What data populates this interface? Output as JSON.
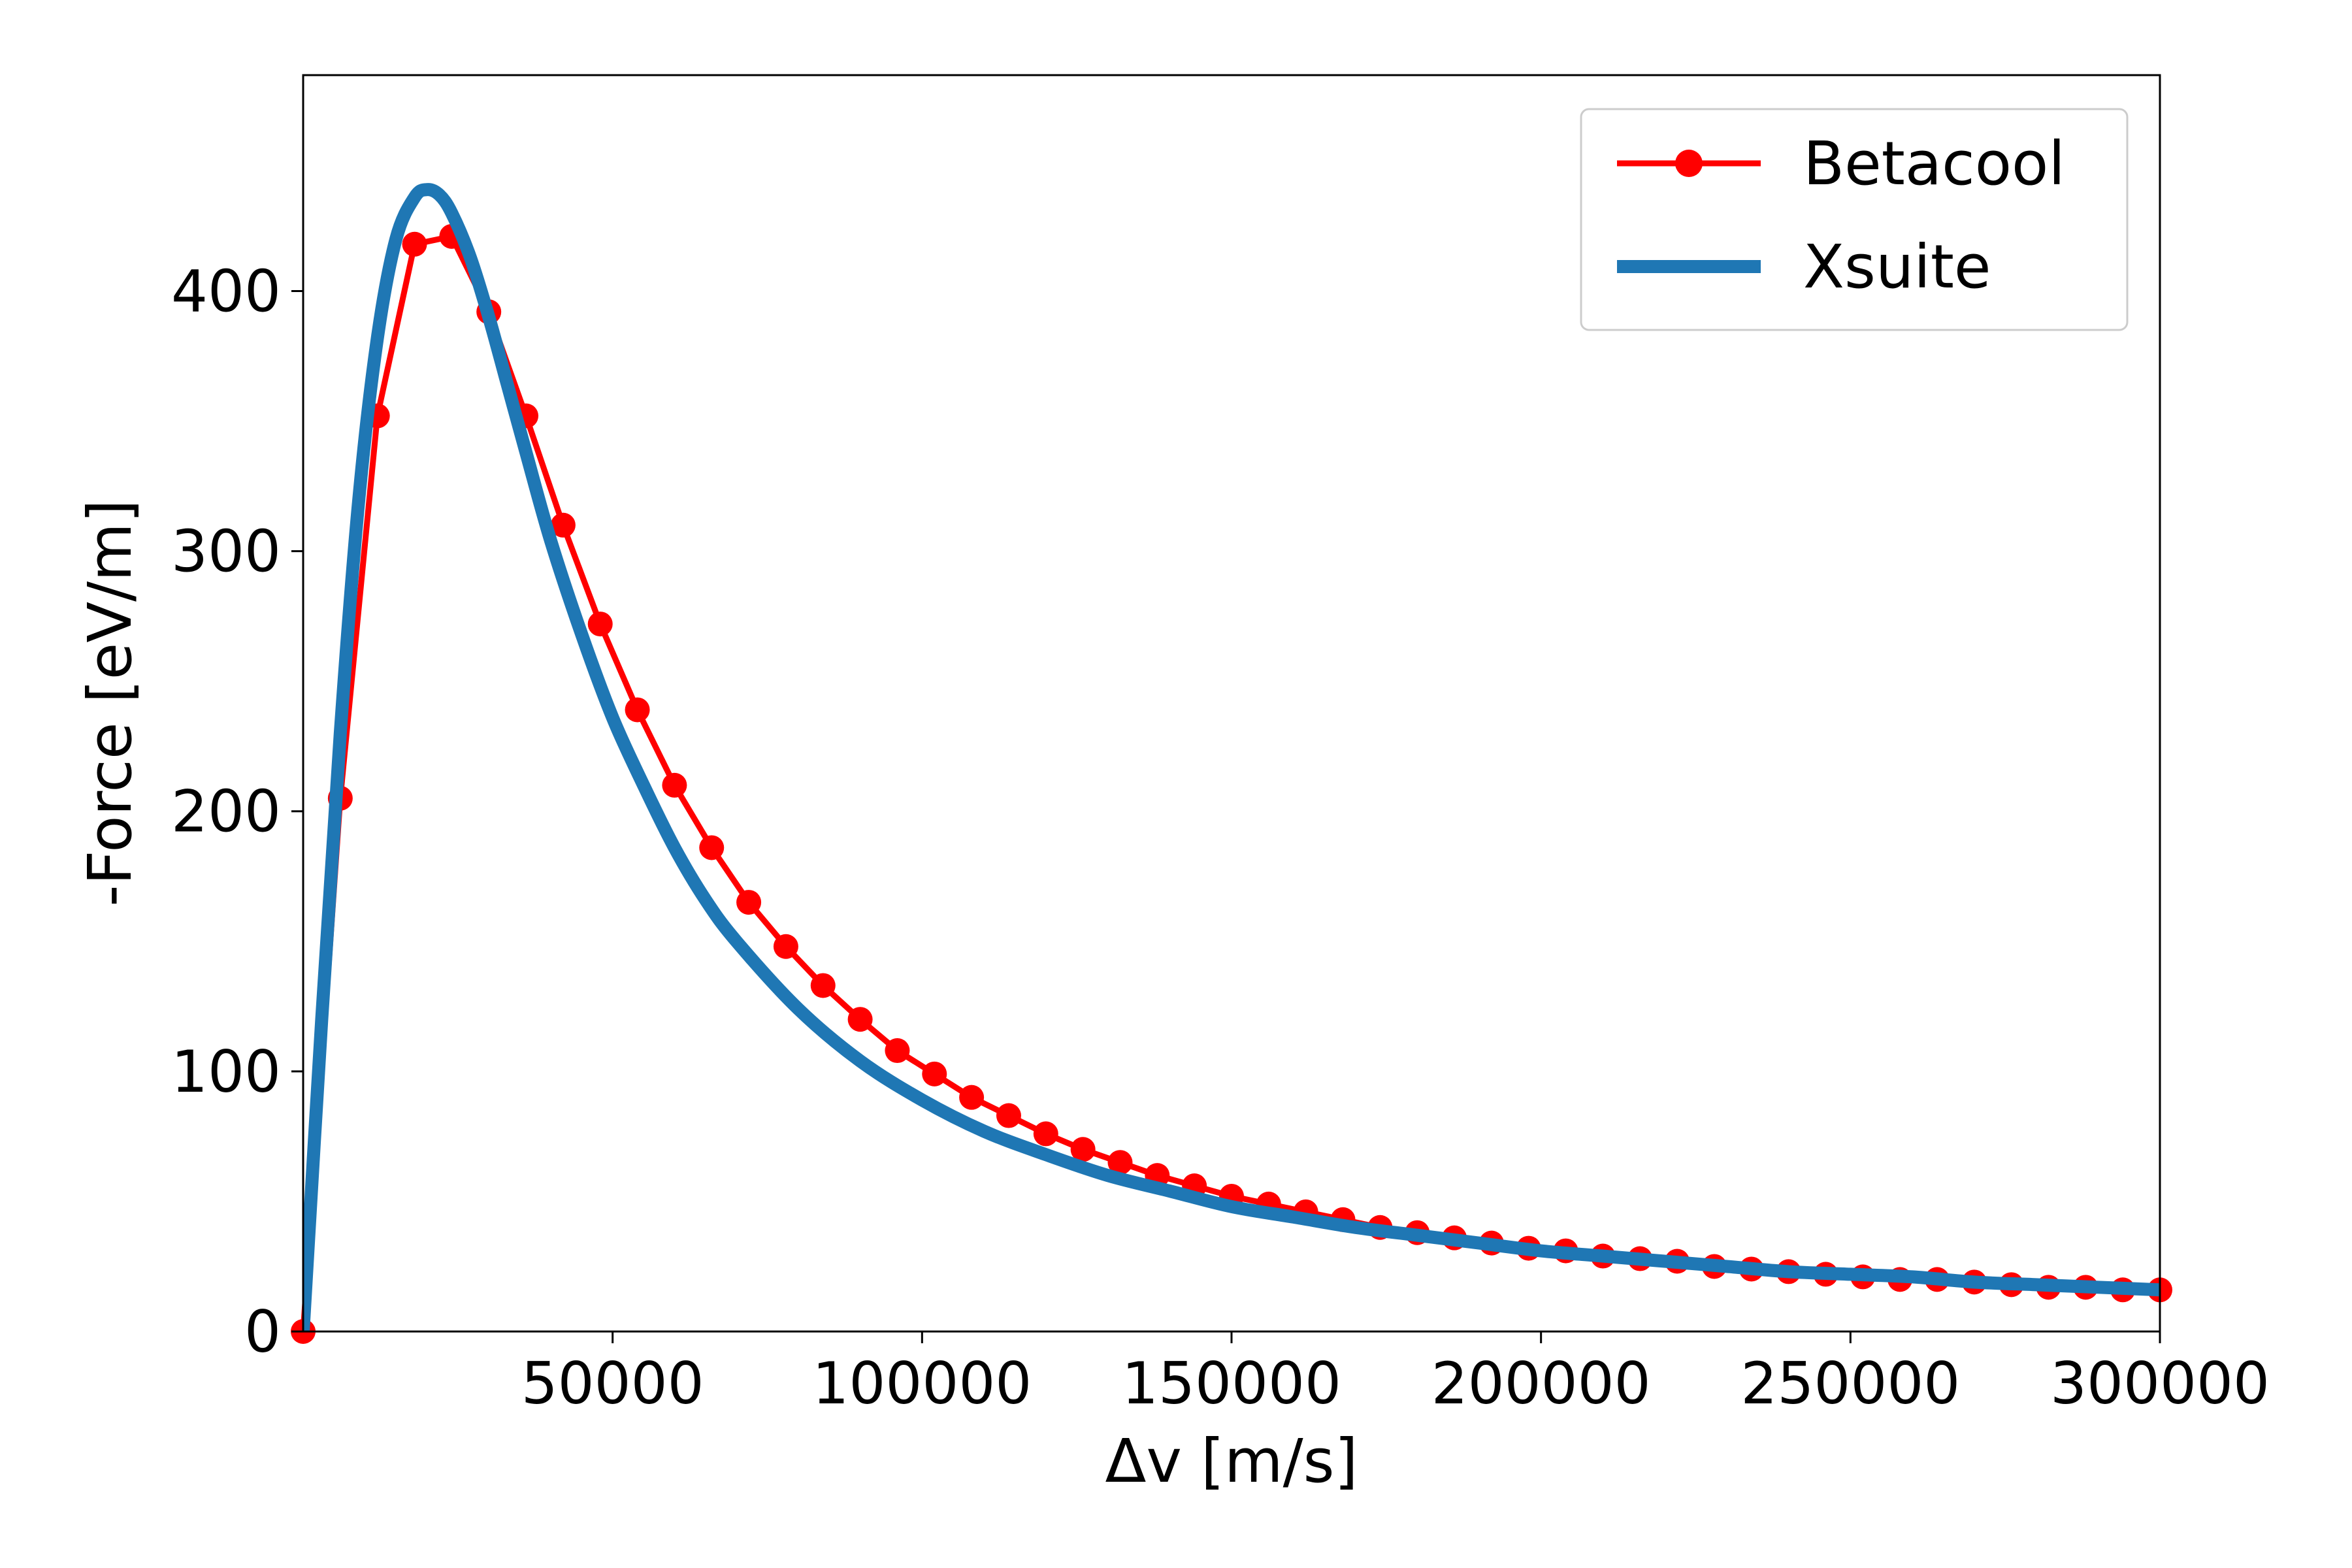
{
  "chart_data": {
    "type": "line",
    "title": "",
    "xlabel": "Δv [m/s]",
    "ylabel": "-Force [eV/m]",
    "xlim": [
      0,
      300000
    ],
    "ylim": [
      0,
      483
    ],
    "xticks": [
      50000,
      100000,
      150000,
      200000,
      250000,
      300000
    ],
    "xtick_labels": [
      "50000",
      "100000",
      "150000",
      "200000",
      "250000",
      "300000"
    ],
    "yticks": [
      0,
      100,
      200,
      300,
      400
    ],
    "ytick_labels": [
      "0",
      "100",
      "200",
      "300",
      "400"
    ],
    "grid": false,
    "legend_position": "top-right",
    "series": [
      {
        "name": "Betacool",
        "color": "#ff0000",
        "marker": "circle",
        "x": [
          0,
          6000,
          12000,
          18000,
          24000,
          30000,
          36000,
          42000,
          48000,
          54000,
          60000,
          66000,
          72000,
          78000,
          84000,
          90000,
          96000,
          102000,
          108000,
          114000,
          120000,
          126000,
          132000,
          138000,
          144000,
          150000,
          156000,
          162000,
          168000,
          174000,
          180000,
          186000,
          192000,
          198000,
          204000,
          210000,
          216000,
          222000,
          228000,
          234000,
          240000,
          246000,
          252000,
          258000,
          264000,
          270000,
          276000,
          282000,
          288000,
          294000,
          300000
        ],
        "y": [
          0,
          205,
          352,
          418,
          421,
          392,
          352,
          310,
          272,
          239,
          210,
          186,
          165,
          148,
          133,
          120,
          108,
          99,
          90,
          83,
          76,
          70,
          65,
          60,
          56,
          52,
          49,
          46,
          43,
          40,
          38,
          36,
          34,
          32,
          31,
          29,
          28,
          27,
          25,
          24,
          23,
          22,
          21,
          20,
          20,
          19,
          18,
          17,
          17,
          16,
          16
        ]
      },
      {
        "name": "Xsuite",
        "color": "#1f77b4",
        "marker": "none",
        "x": [
          0,
          3000,
          6000,
          9000,
          12000,
          15000,
          18000,
          20000,
          22000,
          24000,
          27000,
          30000,
          33000,
          36000,
          40000,
          45000,
          50000,
          55000,
          60000,
          65000,
          70000,
          80000,
          90000,
          100000,
          110000,
          120000,
          130000,
          140000,
          150000,
          160000,
          170000,
          180000,
          190000,
          200000,
          210000,
          220000,
          230000,
          240000,
          250000,
          260000,
          270000,
          280000,
          290000,
          300000
        ],
        "y": [
          0,
          120,
          230,
          320,
          382,
          420,
          436,
          439,
          437,
          430,
          413,
          390,
          364,
          338,
          304,
          268,
          236,
          210,
          186,
          166,
          150,
          124,
          104,
          89,
          77,
          68,
          60,
          54,
          48,
          44,
          40,
          37,
          34,
          31,
          29,
          27,
          25,
          23,
          22,
          21,
          19,
          18,
          17,
          16
        ]
      }
    ]
  }
}
